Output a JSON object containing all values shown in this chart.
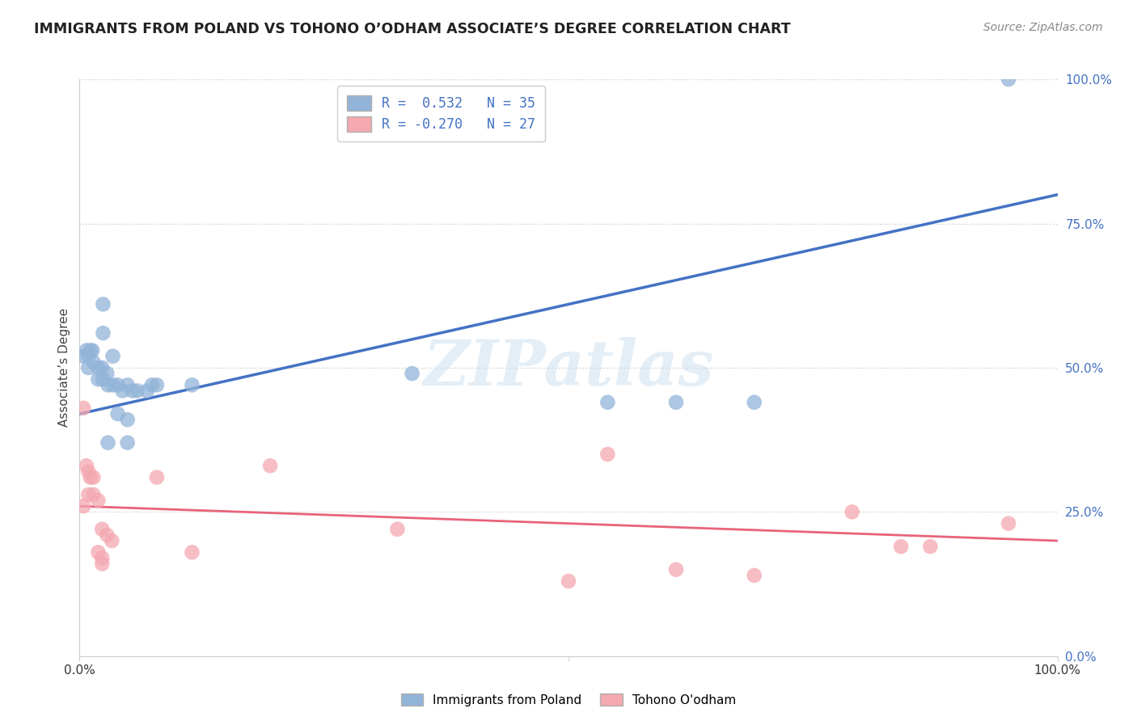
{
  "title": "IMMIGRANTS FROM POLAND VS TOHONO O’ODHAM ASSOCIATE’S DEGREE CORRELATION CHART",
  "source": "Source: ZipAtlas.com",
  "ylabel": "Associate’s Degree",
  "ytick_values": [
    0,
    25,
    50,
    75,
    100
  ],
  "xlim": [
    0,
    100
  ],
  "ylim": [
    0,
    100
  ],
  "blue_color": "#92B4D8",
  "pink_color": "#F4A8B0",
  "blue_line_color": "#4472C4",
  "pink_line_color": "#E8637A",
  "blue_dots": [
    [
      0.4,
      52
    ],
    [
      0.7,
      53
    ],
    [
      0.9,
      52
    ],
    [
      1.1,
      53
    ],
    [
      1.3,
      53
    ],
    [
      0.9,
      50
    ],
    [
      1.4,
      51
    ],
    [
      1.9,
      50
    ],
    [
      2.3,
      50
    ],
    [
      2.8,
      49
    ],
    [
      1.9,
      48
    ],
    [
      2.4,
      48
    ],
    [
      2.9,
      47
    ],
    [
      3.4,
      47
    ],
    [
      3.9,
      47
    ],
    [
      2.4,
      56
    ],
    [
      3.4,
      52
    ],
    [
      4.4,
      46
    ],
    [
      4.9,
      47
    ],
    [
      5.4,
      46
    ],
    [
      5.9,
      46
    ],
    [
      6.9,
      46
    ],
    [
      7.4,
      47
    ],
    [
      7.9,
      47
    ],
    [
      3.9,
      42
    ],
    [
      4.9,
      41
    ],
    [
      11.5,
      47
    ],
    [
      2.9,
      37
    ],
    [
      4.9,
      37
    ],
    [
      34.0,
      49
    ],
    [
      2.4,
      61
    ],
    [
      95.0,
      100
    ],
    [
      54.0,
      44
    ],
    [
      61.0,
      44
    ],
    [
      69.0,
      44
    ]
  ],
  "pink_dots": [
    [
      0.4,
      43
    ],
    [
      0.7,
      33
    ],
    [
      0.9,
      32
    ],
    [
      1.1,
      31
    ],
    [
      1.4,
      31
    ],
    [
      0.9,
      28
    ],
    [
      1.4,
      28
    ],
    [
      1.9,
      27
    ],
    [
      0.4,
      26
    ],
    [
      2.3,
      22
    ],
    [
      2.8,
      21
    ],
    [
      3.3,
      20
    ],
    [
      1.9,
      18
    ],
    [
      2.3,
      17
    ],
    [
      2.3,
      16
    ],
    [
      7.9,
      31
    ],
    [
      11.5,
      18
    ],
    [
      19.5,
      33
    ],
    [
      32.5,
      22
    ],
    [
      50.0,
      13
    ],
    [
      54.0,
      35
    ],
    [
      61.0,
      15
    ],
    [
      69.0,
      14
    ],
    [
      79.0,
      25
    ],
    [
      84.0,
      19
    ],
    [
      87.0,
      19
    ],
    [
      95.0,
      23
    ]
  ],
  "blue_trendline_x": [
    0,
    100
  ],
  "blue_trendline_y": [
    42,
    80
  ],
  "pink_trendline_x": [
    0,
    100
  ],
  "pink_trendline_y": [
    26,
    20
  ]
}
